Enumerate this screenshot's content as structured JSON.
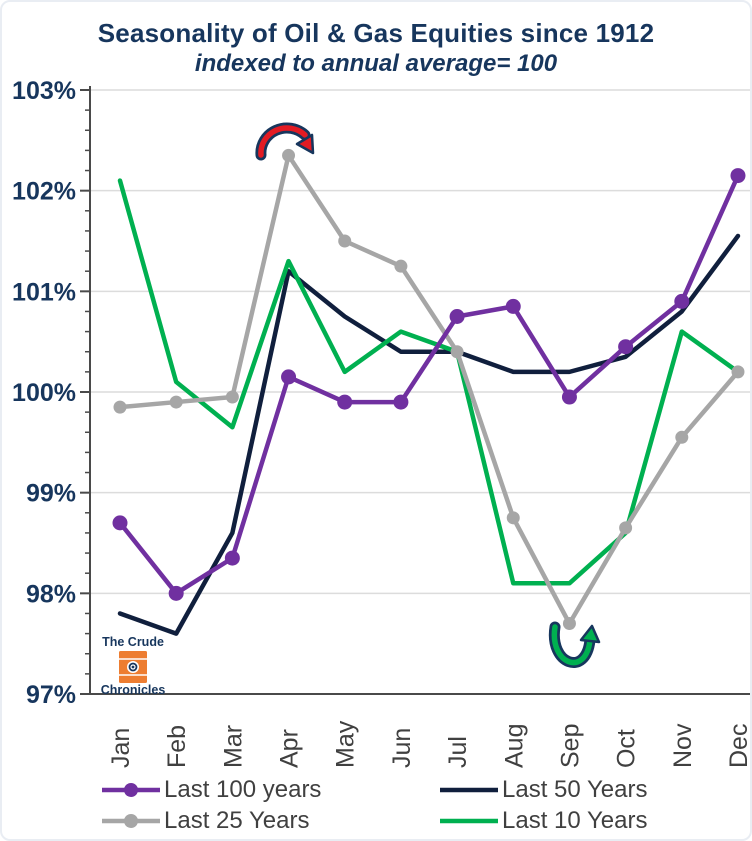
{
  "header": {
    "title": "Seasonality of Oil & Gas Equities since 1912",
    "subtitle": "indexed to annual average= 100"
  },
  "chart_data": {
    "type": "line",
    "title": "Seasonality of Oil & Gas Equities since 1912",
    "subtitle": "indexed to annual average= 100",
    "categories": [
      "Jan",
      "Feb",
      "Mar",
      "Apr",
      "May",
      "Jun",
      "Jul",
      "Aug",
      "Sep",
      "Oct",
      "Nov",
      "Dec"
    ],
    "y_axis": {
      "min": 97,
      "max": 103,
      "tick_step": 1,
      "minor_tick_step": 0.2,
      "tick_labels": [
        "97%",
        "98%",
        "99%",
        "100%",
        "101%",
        "102%",
        "103%"
      ]
    },
    "grid": true,
    "legend_position": "bottom",
    "series": [
      {
        "name": "Last 100 years",
        "color": "#7030A0",
        "marker": true,
        "values": [
          98.7,
          98.0,
          98.35,
          100.15,
          99.9,
          99.9,
          100.75,
          100.85,
          99.95,
          100.45,
          100.9,
          102.15
        ]
      },
      {
        "name": "Last 50 Years",
        "color": "#101F3D",
        "marker": false,
        "values": [
          97.8,
          97.6,
          98.6,
          101.2,
          100.75,
          100.4,
          100.4,
          100.2,
          100.2,
          100.35,
          100.8,
          101.55
        ]
      },
      {
        "name": "Last 25 Years",
        "color": "#A6A6A6",
        "marker": true,
        "values": [
          99.85,
          99.9,
          99.95,
          102.35,
          101.5,
          101.25,
          100.4,
          98.75,
          97.7,
          98.65,
          99.55,
          100.2
        ]
      },
      {
        "name": "Last 10 Years",
        "color": "#00B050",
        "marker": false,
        "values": [
          102.1,
          100.1,
          99.65,
          101.3,
          100.2,
          100.6,
          100.4,
          98.1,
          98.1,
          98.6,
          100.6,
          100.2
        ]
      }
    ],
    "annotations": [
      {
        "name": "april-peak-arrow",
        "shape": "arch-arrow-down",
        "color": "#E31B23",
        "outline": "#17365D",
        "near": "Apr gray peak"
      },
      {
        "name": "september-trough-arrow",
        "shape": "u-turn-arrow-up",
        "color": "#00B050",
        "outline": "#17365D",
        "near": "Sep gray trough"
      }
    ]
  },
  "logo": {
    "top_text": "The Crude",
    "bottom_text": "Chronicles",
    "barrel_color": "#ED7D31",
    "text_color": "#17365D"
  },
  "colors": {
    "title": "#17365D",
    "axis_labels": "#17365D",
    "month_labels": "#404040",
    "legend_text": "#404040",
    "gridline": "#DCDCDC",
    "axis_line": "#4A4A4A",
    "background": "#FFFFFF"
  }
}
